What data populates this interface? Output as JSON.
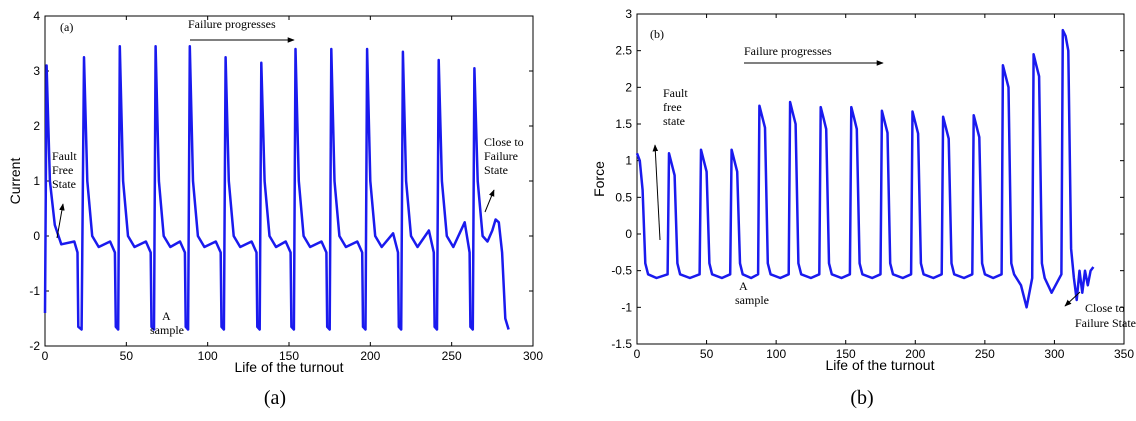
{
  "chart_data": [
    {
      "type": "line",
      "title": "(a)",
      "caption": "(a)",
      "x_label": "Life of the turnout",
      "y_label": "Current",
      "xlim": [
        0,
        300
      ],
      "xticks": [
        0,
        50,
        100,
        150,
        200,
        250,
        300
      ],
      "ylim": [
        -2,
        4
      ],
      "yticks": [
        -2,
        -1,
        0,
        1,
        2,
        3,
        4
      ],
      "annotations": [
        {
          "lines": [
            "Failure progresses"
          ]
        },
        {
          "lines": [
            "Fault",
            "Free",
            "State"
          ]
        },
        {
          "lines": [
            "A",
            "sample"
          ]
        },
        {
          "lines": [
            "Close to",
            "Failure",
            "State"
          ]
        }
      ],
      "series": [
        {
          "color": "#1a1aee",
          "x": [
            0,
            1,
            3,
            6,
            10,
            18,
            20,
            20.5,
            22.5,
            24,
            26,
            29,
            33,
            40,
            43,
            43.5,
            45,
            46,
            48,
            51,
            55,
            62,
            65,
            65.5,
            67,
            68,
            70,
            73,
            77,
            83,
            86,
            86.5,
            88,
            89,
            91,
            94,
            98,
            105,
            108,
            108.5,
            110,
            111,
            113,
            116,
            120,
            127,
            130,
            130.5,
            132,
            133,
            135,
            138,
            142,
            148,
            151,
            151.5,
            153,
            154,
            156,
            159,
            163,
            170,
            173,
            173.5,
            175,
            176,
            178,
            181,
            185,
            192,
            195,
            195.5,
            197,
            198,
            200,
            203,
            207,
            214,
            217,
            217.5,
            219,
            220,
            222,
            225,
            229,
            236,
            239,
            239.5,
            241,
            242,
            244,
            247,
            251,
            258,
            261,
            261.5,
            263,
            264,
            266,
            269,
            272,
            275,
            277,
            279,
            281,
            283,
            285
          ],
          "values": [
            -1.4,
            3.1,
            1.0,
            0.2,
            -0.15,
            -0.1,
            -0.3,
            -1.65,
            -1.7,
            3.25,
            1.0,
            0.0,
            -0.2,
            -0.1,
            -0.3,
            -1.65,
            -1.7,
            3.45,
            1.0,
            0.0,
            -0.2,
            -0.1,
            -0.3,
            -1.65,
            -1.7,
            3.45,
            1.0,
            0.0,
            -0.2,
            -0.1,
            -0.3,
            -1.65,
            -1.7,
            3.45,
            1.0,
            0.0,
            -0.2,
            -0.1,
            -0.3,
            -1.65,
            -1.7,
            3.25,
            1.0,
            0.0,
            -0.2,
            -0.1,
            -0.3,
            -1.65,
            -1.7,
            3.15,
            1.0,
            0.0,
            -0.2,
            -0.1,
            -0.3,
            -1.65,
            -1.7,
            3.4,
            1.0,
            0.0,
            -0.2,
            -0.1,
            -0.3,
            -1.65,
            -1.7,
            3.4,
            1.0,
            0.0,
            -0.2,
            -0.1,
            -0.3,
            -1.65,
            -1.7,
            3.4,
            1.0,
            0.0,
            -0.2,
            0.05,
            -0.3,
            -1.65,
            -1.7,
            3.35,
            1.0,
            0.0,
            -0.2,
            0.1,
            -0.3,
            -1.65,
            -1.7,
            3.2,
            1.0,
            0.0,
            -0.2,
            0.25,
            -0.3,
            -1.65,
            -1.7,
            3.05,
            1.0,
            0.0,
            -0.1,
            0.1,
            0.3,
            0.25,
            -0.3,
            -1.5,
            -1.7
          ]
        }
      ]
    },
    {
      "type": "line",
      "title": "(b)",
      "caption": "(b)",
      "x_label": "Life of the turnout",
      "y_label": "Force",
      "xlim": [
        0,
        350
      ],
      "xticks": [
        0,
        50,
        100,
        150,
        200,
        250,
        300,
        350
      ],
      "ylim": [
        -1.5,
        3
      ],
      "yticks": [
        -1.5,
        -1,
        -0.5,
        0,
        0.5,
        1,
        1.5,
        2,
        2.5,
        3
      ],
      "annotations": [
        {
          "lines": [
            "Failure progresses"
          ]
        },
        {
          "lines": [
            "Fault",
            "free",
            "state"
          ]
        },
        {
          "lines": [
            "A",
            "sample"
          ]
        },
        {
          "lines": [
            "Close to",
            "Failure State"
          ]
        }
      ],
      "series": [
        {
          "color": "#1a1aee",
          "x": [
            0,
            2,
            4,
            6,
            8,
            14,
            22,
            23,
            25,
            27,
            29,
            31,
            38,
            45,
            46,
            48,
            50,
            52,
            54,
            61,
            67,
            68,
            70,
            72,
            74,
            76,
            82,
            87,
            88,
            90,
            92,
            94,
            96,
            103,
            109,
            110,
            112,
            114,
            116,
            118,
            125,
            131,
            132,
            134,
            136,
            138,
            140,
            147,
            153,
            154,
            156,
            158,
            160,
            162,
            169,
            175,
            176,
            178,
            180,
            182,
            184,
            191,
            197,
            198,
            200,
            202,
            204,
            206,
            213,
            219,
            220,
            222,
            224,
            226,
            228,
            235,
            241,
            242,
            244,
            246,
            248,
            250,
            256,
            262,
            263,
            265,
            267,
            269,
            271,
            276,
            280,
            284,
            285,
            287,
            289,
            291,
            293,
            298,
            305,
            306,
            308,
            310,
            312,
            314,
            316,
            318,
            320,
            322,
            324,
            326,
            328
          ],
          "values": [
            1.1,
            1.0,
            0.6,
            -0.4,
            -0.55,
            -0.6,
            -0.55,
            1.1,
            0.95,
            0.8,
            -0.4,
            -0.55,
            -0.6,
            -0.55,
            1.15,
            1.0,
            0.85,
            -0.4,
            -0.55,
            -0.6,
            -0.55,
            1.15,
            1.0,
            0.85,
            -0.4,
            -0.55,
            -0.6,
            -0.55,
            1.75,
            1.6,
            1.45,
            -0.4,
            -0.55,
            -0.6,
            -0.55,
            1.8,
            1.65,
            1.5,
            -0.4,
            -0.55,
            -0.6,
            -0.55,
            1.73,
            1.58,
            1.43,
            -0.4,
            -0.55,
            -0.6,
            -0.55,
            1.73,
            1.58,
            1.43,
            -0.4,
            -0.55,
            -0.6,
            -0.55,
            1.68,
            1.53,
            1.38,
            -0.4,
            -0.55,
            -0.6,
            -0.55,
            1.67,
            1.52,
            1.37,
            -0.4,
            -0.55,
            -0.6,
            -0.55,
            1.6,
            1.45,
            1.3,
            -0.4,
            -0.55,
            -0.6,
            -0.55,
            1.62,
            1.47,
            1.32,
            -0.4,
            -0.55,
            -0.6,
            -0.55,
            2.3,
            2.15,
            2.0,
            -0.4,
            -0.55,
            -0.7,
            -1.0,
            -0.6,
            2.45,
            2.3,
            2.15,
            -0.4,
            -0.6,
            -0.8,
            -0.55,
            2.78,
            2.7,
            2.5,
            -0.2,
            -0.6,
            -0.9,
            -0.5,
            -0.8,
            -0.5,
            -0.7,
            -0.5,
            -0.45
          ]
        }
      ]
    }
  ]
}
